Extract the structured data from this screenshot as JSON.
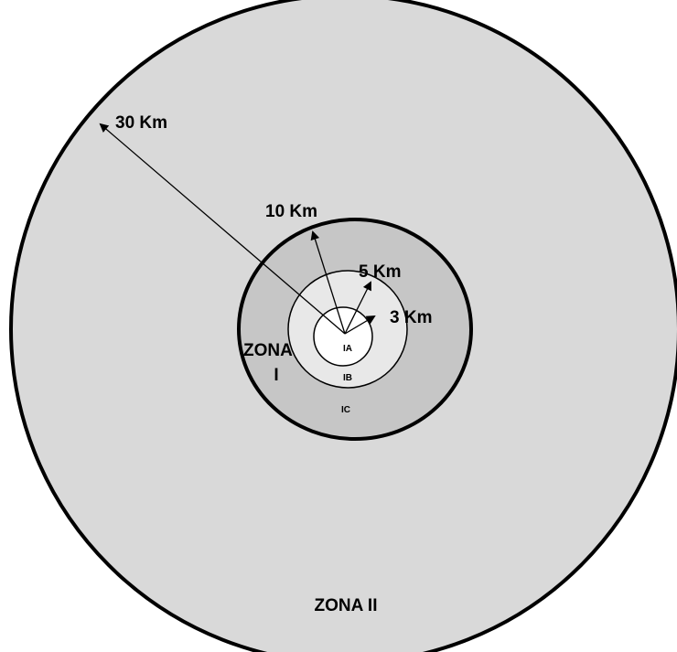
{
  "diagram": {
    "radius_labels": [
      "30 Km",
      "10 Km",
      "5 Km",
      "3 Km"
    ],
    "zone_one": {
      "title": "ZONA",
      "numeral": "I"
    },
    "subzones": [
      "IA",
      "IB",
      "IC"
    ],
    "zone_two": "ZONA II"
  }
}
